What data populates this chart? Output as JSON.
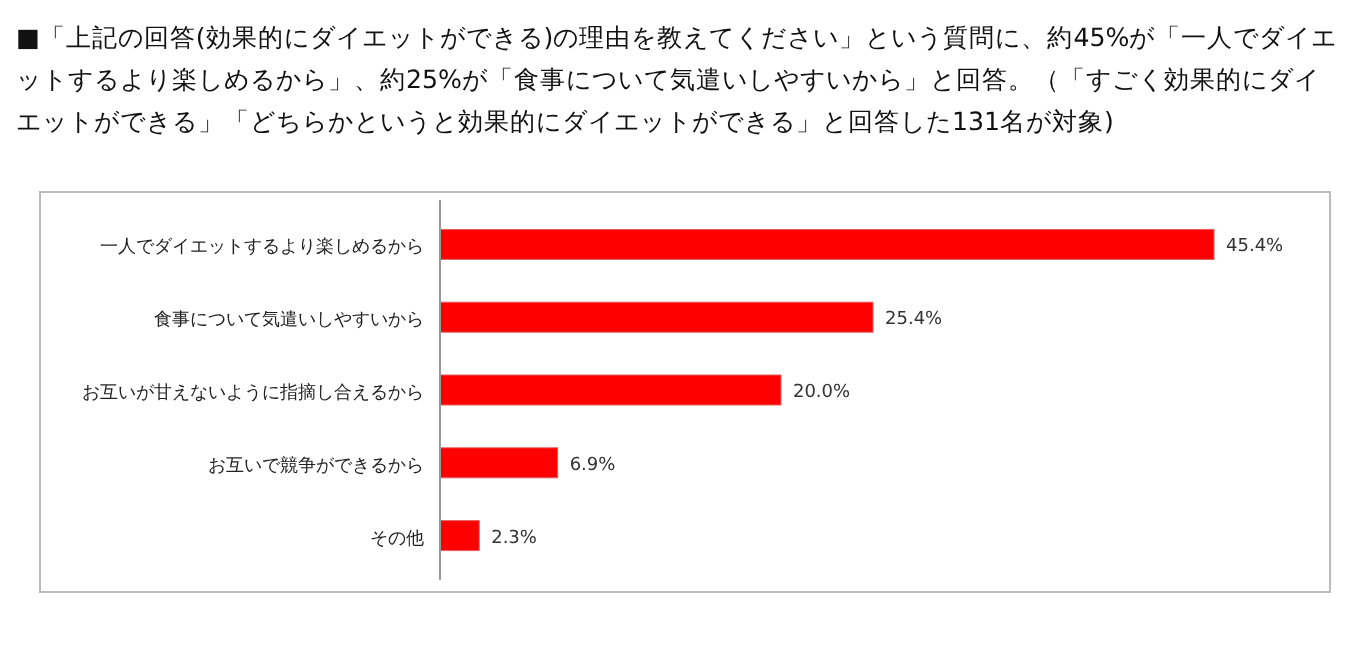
{
  "chart_data": {
    "type": "bar",
    "orientation": "horizontal",
    "title": "■「上記の回答(効果的にダイエットができる)の理由を教えてください」という質問に、約45%が「一人でダイエットするより楽しめるから」、約25%が「食事について気遣いしやすいから」と回答。（「すごく効果的にダイエットができる」「どちらかというと効果的にダイエットができる」と回答した131名が対象)",
    "categories": [
      "一人でダイエットするより楽しめるから",
      "食事について気遣いしやすいから",
      "お互いが甘えないように指摘し合えるから",
      "お互いで競争ができるから",
      "その他"
    ],
    "values": [
      45.4,
      25.4,
      20.0,
      6.9,
      2.3
    ],
    "value_labels": [
      "45.4%",
      "25.4%",
      "20.0%",
      "6.9%",
      "2.3%"
    ],
    "color": "#ff0000"
  }
}
